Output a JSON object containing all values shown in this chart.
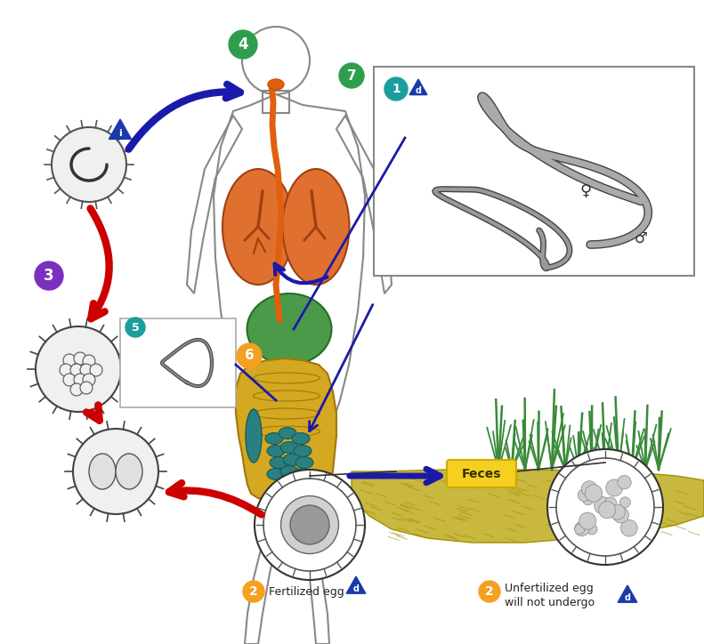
{
  "background_color": "#ffffff",
  "figsize": [
    7.91,
    7.24
  ],
  "dpi": 100,
  "labels": {
    "feces": "Feces",
    "fertilized_egg": "Fertilized egg",
    "unfertilized_line1": "Unfertilized egg",
    "unfertilized_line2": "will not undergo",
    "female_symbol": "♀",
    "male_symbol": "♂"
  },
  "colors": {
    "red_arrow": "#cc0000",
    "blue_arrow": "#1a1aaa",
    "green_circle": "#2e9e4e",
    "orange_circle": "#f5a020",
    "teal_circle": "#1a9e9e",
    "purple_number": "#7b2fbe",
    "lung_orange": "#e07030",
    "liver_green": "#3a8a3a",
    "intestine_yellow": "#d4a820",
    "intestine_teal": "#2a8080",
    "soil_yellow": "#c8b840",
    "grass_green": "#3a8a3a",
    "body_skin": "#e8d8b0",
    "egg_gray": "#888888",
    "feces_label_bg": "#f5d020"
  }
}
